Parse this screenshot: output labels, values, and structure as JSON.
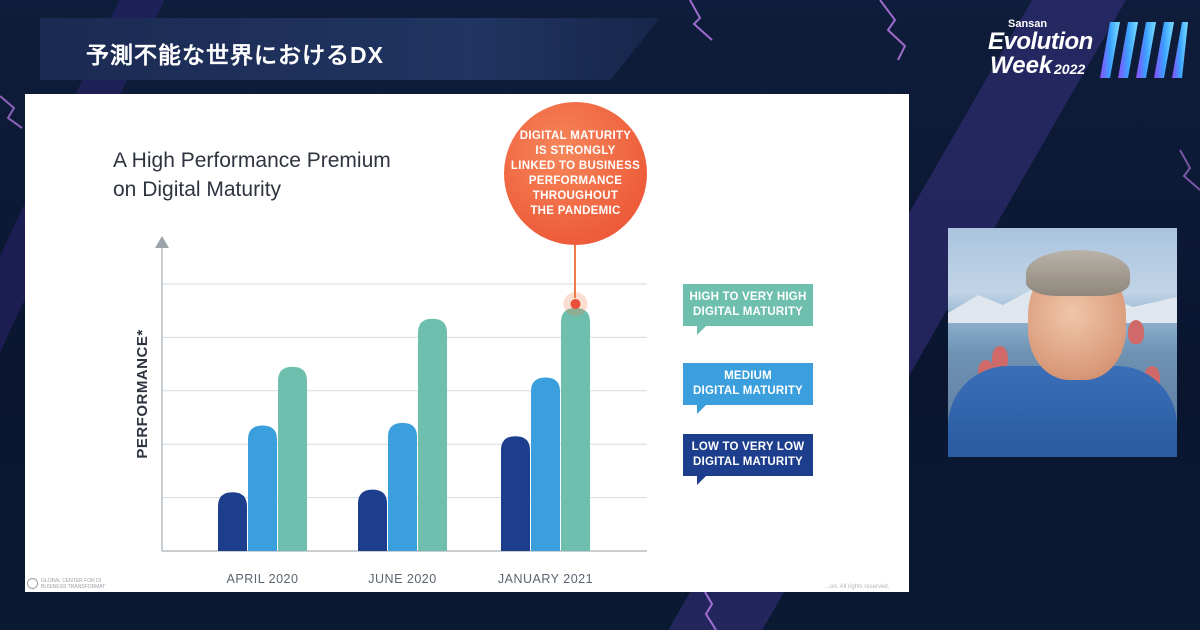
{
  "header": {
    "title": "予測不能な世界におけるDX"
  },
  "logo": {
    "brand": "Sansan",
    "line1": "Evolution",
    "line2": "Week",
    "year": "2022"
  },
  "slide": {
    "title_line1": "A High Performance Premium",
    "title_line2": "on Digital Maturity",
    "callout": [
      "DIGITAL MATURITY",
      "IS STRONGLY",
      "LINKED TO BUSINESS",
      "PERFORMANCE",
      "THROUGHOUT",
      "THE PANDEMIC"
    ],
    "legend": {
      "high": [
        "HIGH TO VERY HIGH",
        "DIGITAL MATURITY"
      ],
      "medium": [
        "MEDIUM",
        "DIGITAL MATURITY"
      ],
      "low": [
        "LOW TO VERY LOW",
        "DIGITAL MATURITY"
      ]
    },
    "footer_left": [
      "GLOBAL CENTER FOR DI",
      "BUSINESS TRANSFORMAT"
    ],
    "footer_right": "...on. All rights reserved."
  },
  "chart_data": {
    "type": "bar",
    "title": "A High Performance Premium on Digital Maturity",
    "xlabel": "",
    "ylabel": "PERFORMANCE*",
    "categories": [
      "APRIL 2020",
      "JUNE 2020",
      "JANUARY 2021"
    ],
    "series": [
      {
        "name": "LOW TO VERY LOW DIGITAL MATURITY",
        "values": [
          1.1,
          1.15,
          2.15
        ],
        "color": "#1d3d8d"
      },
      {
        "name": "MEDIUM DIGITAL MATURITY",
        "values": [
          2.35,
          2.4,
          3.25
        ],
        "color": "#3a9fdc"
      },
      {
        "name": "HIGH TO VERY HIGH DIGITAL MATURITY",
        "values": [
          3.45,
          4.35,
          4.55
        ],
        "color": "#6ebfae"
      }
    ],
    "ylim": [
      0,
      5
    ],
    "grid": true,
    "legend_position": "right"
  },
  "colors": {
    "callout": "#ee5d3b",
    "high": "#6ebfae",
    "medium": "#3a9fdc",
    "low": "#1d3d8d"
  }
}
